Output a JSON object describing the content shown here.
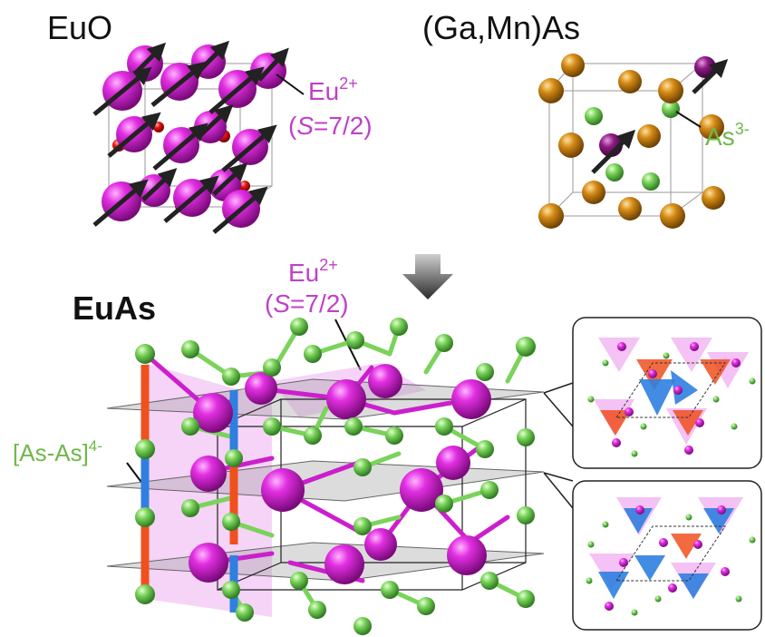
{
  "colors": {
    "eu": "#cc1fcc",
    "eu_label": "#c040c8",
    "as": "#6fcf4f",
    "as_label": "#6fb84a",
    "o": "#dd1111",
    "ga": "#c98412",
    "mn": "#8a1a7a",
    "dimer_red": "#f0501e",
    "dimer_blue": "#2f7fe0",
    "arrow": "#222222"
  },
  "panels": {
    "euo": {
      "title": "EuO",
      "ion_label": {
        "symbol": "Eu",
        "charge": "2+",
        "spin_prefix": "(",
        "spin_symbol": "S",
        "spin_value": "=7/2)"
      }
    },
    "gamnas": {
      "title": "(Ga,Mn)As",
      "ion_label": {
        "symbol": "As",
        "charge": "3-"
      }
    },
    "euas": {
      "title": "EuAs",
      "ion_label": {
        "symbol": "Eu",
        "charge": "2+",
        "spin_prefix": "(",
        "spin_symbol": "S",
        "spin_value": "=7/2)"
      },
      "dimer_label": {
        "text": "[As-As]",
        "charge": "4-"
      }
    }
  },
  "icons": {
    "down_arrow": "down-arrow-icon",
    "spin_arrow": "spin-arrow-icon"
  }
}
